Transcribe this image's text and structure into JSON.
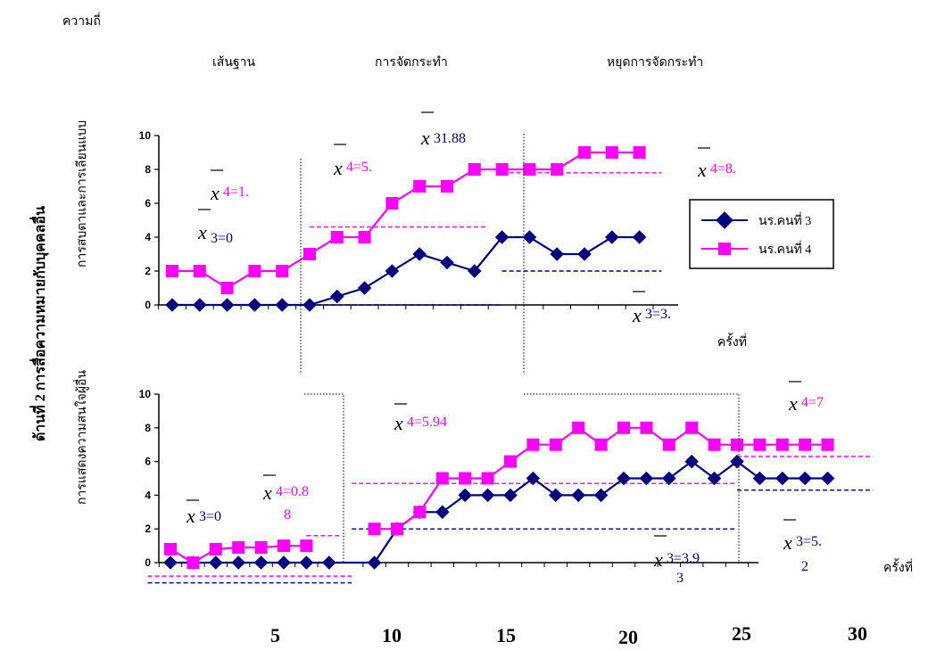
{
  "labels": {
    "y_unit": "ความถี่",
    "phase_baseline": "เส้นฐาน",
    "phase_treatment": "การจัดกระทำ",
    "phase_withdrawal": "หยุดการจัดกระทำ",
    "side_title": "ด้านที่  2  การสื่อความหมายกับบุคคลอื่น",
    "x_label": "ครั้งที่",
    "x_label_bottom": "ครั้งที่",
    "x_ticks": [
      "5",
      "10",
      "15",
      "20",
      "25",
      "30"
    ]
  },
  "chart_data": [
    {
      "type": "line",
      "ylabel": "การสบตาและการเลียนแบบ",
      "ylim": [
        0,
        10
      ],
      "y_ticks": [
        "0",
        "2",
        "4",
        "6",
        "8",
        "10"
      ],
      "legend_position": "right",
      "series": [
        {
          "name": "นร.คนที่ 3",
          "color": "#000080",
          "marker": "diamond",
          "points": [
            [
              1,
              0
            ],
            [
              2,
              0
            ],
            [
              3,
              0
            ],
            [
              4,
              0
            ],
            [
              5,
              0
            ],
            [
              6,
              0
            ],
            [
              7,
              0.5
            ],
            [
              8,
              1
            ],
            [
              9,
              2
            ],
            [
              10,
              3
            ],
            [
              11,
              2.5
            ],
            [
              12,
              2
            ],
            [
              13,
              4
            ],
            [
              14,
              4
            ],
            [
              15,
              3
            ],
            [
              16,
              3
            ],
            [
              17,
              4
            ],
            [
              18,
              4
            ]
          ]
        },
        {
          "name": "นร.คนที่ 4",
          "color": "#ff00ff",
          "marker": "square",
          "points": [
            [
              1,
              2
            ],
            [
              2,
              2
            ],
            [
              3,
              1
            ],
            [
              4,
              2
            ],
            [
              5,
              2
            ],
            [
              6,
              3
            ],
            [
              7,
              4
            ],
            [
              8,
              4
            ],
            [
              9,
              6
            ],
            [
              10,
              7
            ],
            [
              11,
              7
            ],
            [
              12,
              8
            ],
            [
              13,
              8
            ],
            [
              14,
              8
            ],
            [
              15,
              8
            ],
            [
              16,
              9
            ],
            [
              17,
              9
            ],
            [
              18,
              9
            ]
          ]
        }
      ],
      "mean_lines": [
        {
          "series": "นร.คนที่ 3",
          "from": 6,
          "to": 13,
          "y": 0
        },
        {
          "series": "นร.คนที่ 3",
          "from": 13,
          "to": 18.8,
          "y": 2
        },
        {
          "series": "นร.คนที่ 4",
          "from": 6,
          "to": 12.5,
          "y": 4.6
        },
        {
          "series": "นร.คนที่ 4",
          "from": 13,
          "to": 18.8,
          "y": 7.8
        }
      ],
      "annotations": [
        {
          "text": "4=1.",
          "color": "#ff00ff"
        },
        {
          "text": "3=0",
          "color": "#000080"
        },
        {
          "text": "4=5.",
          "color": "#ff00ff"
        },
        {
          "text": "31.88",
          "color": "#000080"
        },
        {
          "text": "4=8.",
          "color": "#ff00ff"
        },
        {
          "text": "3=3.",
          "color": "#000080"
        }
      ]
    },
    {
      "type": "line",
      "ylabel": "การแสดงความสนใจผู้อื่น",
      "ylim": [
        0,
        10
      ],
      "y_ticks": [
        "0",
        "2",
        "4",
        "6",
        "8",
        "10"
      ],
      "series": [
        {
          "name": "นร.คนที่ 3",
          "color": "#000080",
          "marker": "diamond",
          "points": [
            [
              1,
              0
            ],
            [
              2,
              0
            ],
            [
              3,
              0
            ],
            [
              4,
              0
            ],
            [
              5,
              0
            ],
            [
              6,
              0
            ],
            [
              7,
              0
            ],
            [
              8,
              0
            ],
            [
              10,
              0
            ],
            [
              11,
              2
            ],
            [
              12,
              3
            ],
            [
              13,
              3
            ],
            [
              14,
              4
            ],
            [
              15,
              4
            ],
            [
              16,
              4
            ],
            [
              17,
              5
            ],
            [
              18,
              4
            ],
            [
              19,
              4
            ],
            [
              20,
              4
            ],
            [
              21,
              5
            ],
            [
              22,
              5
            ],
            [
              23,
              5
            ],
            [
              24,
              6
            ],
            [
              25,
              5
            ],
            [
              26,
              6
            ],
            [
              27,
              5
            ],
            [
              28,
              5
            ],
            [
              29,
              5
            ],
            [
              30,
              5
            ]
          ]
        },
        {
          "name": "นร.คนที่ 4",
          "color": "#ff00ff",
          "marker": "square",
          "points": [
            [
              1,
              0.8
            ],
            [
              2,
              0
            ],
            [
              3,
              0.8
            ],
            [
              4,
              0.9
            ],
            [
              5,
              0.9
            ],
            [
              6,
              1
            ],
            [
              7,
              1
            ],
            [
              10,
              2
            ],
            [
              11,
              2
            ],
            [
              12,
              3
            ],
            [
              13,
              5
            ],
            [
              14,
              5
            ],
            [
              15,
              5
            ],
            [
              16,
              6
            ],
            [
              17,
              7
            ],
            [
              18,
              7
            ],
            [
              19,
              8
            ],
            [
              20,
              7
            ],
            [
              21,
              8
            ],
            [
              22,
              8
            ],
            [
              23,
              7
            ],
            [
              24,
              8
            ],
            [
              25,
              7
            ],
            [
              26,
              7
            ],
            [
              27,
              7
            ],
            [
              28,
              7
            ],
            [
              29,
              7
            ],
            [
              30,
              7
            ]
          ]
        }
      ],
      "mean_lines": [
        {
          "series": "นร.คนที่ 3",
          "from": 0,
          "to": 9,
          "y": -1.2
        },
        {
          "series": "นร.คนที่ 4",
          "from": 0,
          "to": 9,
          "y": -0.8
        },
        {
          "series": "นร.คนที่ 4",
          "from": 7,
          "to": 8.5,
          "y": 1.6
        },
        {
          "series": "นร.คนที่ 3",
          "from": 9,
          "to": 26,
          "y": 2
        },
        {
          "series": "นร.คนที่ 4",
          "from": 9,
          "to": 26,
          "y": 4.7
        },
        {
          "series": "นร.คนที่ 4",
          "from": 26,
          "to": 32,
          "y": 6.3
        },
        {
          "series": "นร.คนที่ 3",
          "from": 26,
          "to": 32,
          "y": 4.3
        }
      ],
      "annotations": [
        {
          "text": "3=0",
          "color": "#000080"
        },
        {
          "text": "4=0.8",
          "color": "#ff00ff"
        },
        {
          "text": "8",
          "color": "#ff00ff"
        },
        {
          "text": "4=5.94",
          "color": "#ff00ff"
        },
        {
          "text": "4=7",
          "color": "#ff00ff"
        },
        {
          "text": "3=5.",
          "color": "#000080"
        },
        {
          "text": "2",
          "color": "#000080"
        },
        {
          "text": "3=3.9",
          "color": "#000080"
        },
        {
          "text": "3",
          "color": "#000080"
        }
      ]
    }
  ]
}
